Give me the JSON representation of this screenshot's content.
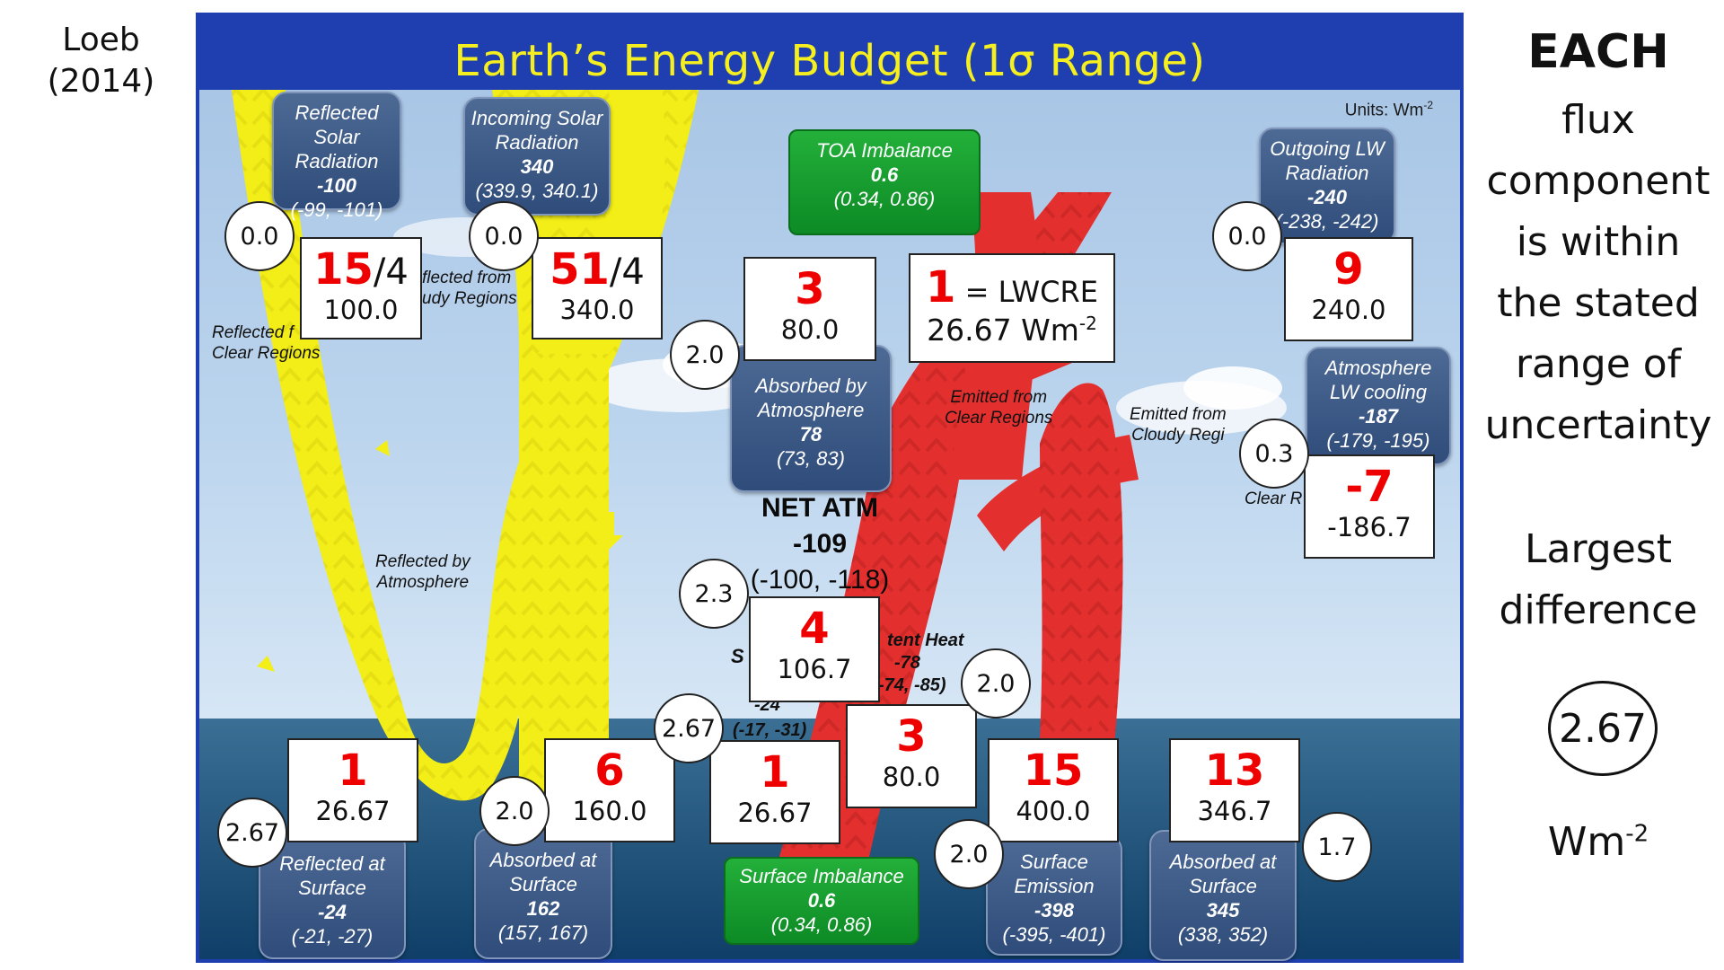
{
  "citation": "Loeb\n(2014)",
  "diagram": {
    "title": "Earth’s Energy Budget (1σ Range)",
    "units_text": "Units: Wm",
    "units_exp": "-2",
    "boxes": {
      "reflected_solar": {
        "label": "Reflected Solar\nRadiation",
        "value": "-100",
        "range": "(-99, -101)"
      },
      "incoming_solar": {
        "label": "Incoming Solar\nRadiation",
        "value": "340",
        "range": "(339.9, 340.1)"
      },
      "toa_imbalance": {
        "label": "TOA Imbalance",
        "value": "0.6",
        "range": "(0.34, 0.86)"
      },
      "outgoing_lw": {
        "label": "Outgoing LW\nRadiation",
        "value": "-240",
        "range": "(-238, -242)"
      },
      "absorbed_atmosphere": {
        "label": "Absorbed by\nAtmosphere",
        "value": "78",
        "range": "(73, 83)"
      },
      "atm_lw_cooling": {
        "label": "Atmosphere\nLW cooling",
        "value": "-187",
        "range": "(-179, -195)"
      },
      "reflected_surface": {
        "label": "Reflected  at\nSurface",
        "value": "-24",
        "range": "(-21, -27)"
      },
      "absorbed_surface": {
        "label": "Absorbed at\nSurface",
        "value": "162",
        "range": "(157, 167)"
      },
      "surface_imbalance": {
        "label": "Surface Imbalance",
        "value": "0.6",
        "range": "(0.34, 0.86)"
      },
      "surface_emission": {
        "label": "Surface\nEmission",
        "value": "-398",
        "range": "(-395, -401)"
      },
      "absorbed_surface_lw": {
        "label": "Absorbed at\nSurface",
        "value": "345",
        "range": "(338, 352)"
      }
    },
    "flow_labels": {
      "reflected_clear": "Reflected f\nClear Regions",
      "reflected_cloudy": "flected from\nudy Regions",
      "reflected_atm": "Reflected by\nAtmosphere",
      "emitted_clear": "Emitted from\nClear Regions",
      "emitted_cloudy": "Emitted from\nCloudy Regi",
      "clear_r": "Clear R"
    },
    "net_atm": {
      "label": "NET ATM",
      "value": "-109",
      "range": "(-100, -118)"
    },
    "partial_texts": {
      "latent_heat": "tent Heat",
      "latent_value": "-78",
      "latent_range": "-74, -85)",
      "sensible_s": "S",
      "sensible_value": "-24",
      "sensible_range": "(-17, -31)"
    }
  },
  "overlays": {
    "boxes": [
      {
        "id": "reflected-solar",
        "red": "15",
        "suffix": "/4",
        "value": "100.0"
      },
      {
        "id": "incoming-solar",
        "red": "51",
        "suffix": "/4",
        "value": "340.0"
      },
      {
        "id": "absorbed-atm",
        "red": "3",
        "suffix": "",
        "value": "80.0"
      },
      {
        "id": "lwcre",
        "red": "1",
        "suffix": " = LWCRE",
        "value": "26.67 Wm",
        "value_exp": "-2"
      },
      {
        "id": "outgoing-lw",
        "red": "9",
        "suffix": "",
        "value": "240.0"
      },
      {
        "id": "atm-lw-cooling",
        "red": "-7",
        "suffix": "",
        "value": "-186.7"
      },
      {
        "id": "net-atm",
        "red": "4",
        "suffix": "",
        "value": "106.7"
      },
      {
        "id": "latent-heat",
        "red": "3",
        "suffix": "",
        "value": "80.0"
      },
      {
        "id": "sensible-heat",
        "red": "1",
        "suffix": "",
        "value": "26.67"
      },
      {
        "id": "reflected-surface",
        "red": "1",
        "suffix": "",
        "value": "26.67"
      },
      {
        "id": "absorbed-surface",
        "red": "6",
        "suffix": "",
        "value": "160.0"
      },
      {
        "id": "surface-emission",
        "red": "15",
        "suffix": "",
        "value": "400.0"
      },
      {
        "id": "absorbed-surface-lw",
        "red": "13",
        "suffix": "",
        "value": "346.7"
      }
    ],
    "circles": [
      "0.0",
      "0.0",
      "2.0",
      "0.0",
      "0.3",
      "2.3",
      "2.0",
      "2.67",
      "2.67",
      "2.0",
      "2.0",
      "1.7"
    ]
  },
  "side_panel": {
    "heading": "EACH",
    "text": "flux\ncomponent\nis within\nthe stated\nrange of\nuncertainty",
    "largest": "Largest\ndifference",
    "value": "2.67",
    "unit": "Wm",
    "unit_exp": "-2"
  },
  "colors": {
    "shortwave": "#f3ee17",
    "longwave": "#e3302f",
    "navy_box": "#3a5785",
    "green_box": "#109a2a",
    "title": "#f6ef1f",
    "red_number": "#ee0000"
  }
}
